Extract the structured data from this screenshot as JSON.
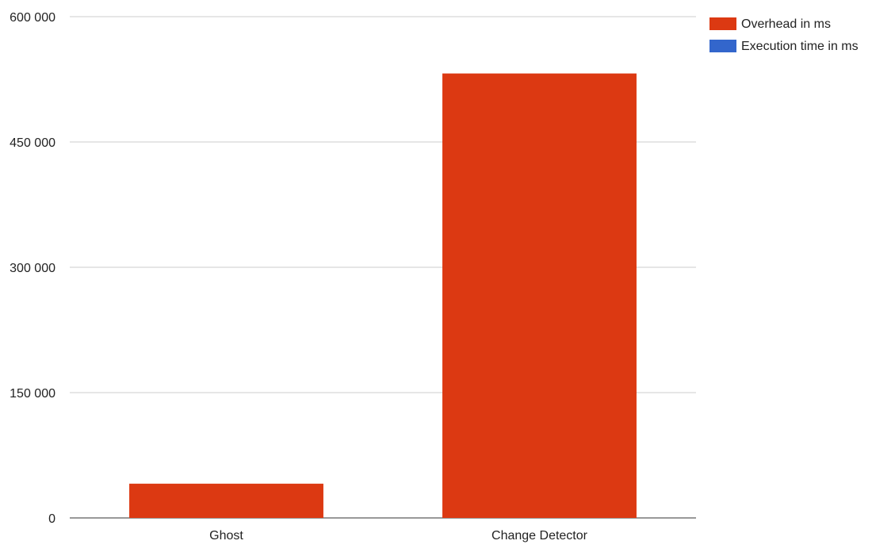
{
  "chart_data": {
    "type": "bar",
    "stacked": true,
    "categories": [
      "Ghost",
      "Change Detector"
    ],
    "series": [
      {
        "name": "Overhead in ms",
        "color": "#dc3912",
        "values": [
          41000,
          532000
        ]
      },
      {
        "name": "Execution time in ms",
        "color": "#3366cc",
        "values": [
          0,
          0
        ]
      }
    ],
    "ylim": [
      0,
      600000
    ],
    "y_ticks": [
      0,
      150000,
      300000,
      450000,
      600000
    ],
    "y_tick_labels": [
      "0",
      "150 000",
      "300 000",
      "450 000",
      "600 000"
    ],
    "grid": true,
    "legend_position": "right",
    "title": "",
    "xlabel": "",
    "ylabel": ""
  }
}
